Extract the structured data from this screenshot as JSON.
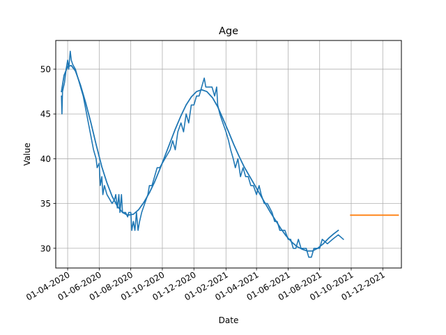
{
  "chart_data": {
    "type": "line",
    "title": "Age",
    "xlabel": "Date",
    "ylabel": "Value",
    "x_type": "date",
    "x_range": [
      "2020-03-09",
      "2022-01-06"
    ],
    "ylim": [
      27.8,
      53.2
    ],
    "grid": true,
    "x_ticks": [
      "2020-04-01",
      "2020-06-01",
      "2020-08-01",
      "2020-10-01",
      "2020-12-01",
      "2021-02-01",
      "2021-04-01",
      "2021-06-01",
      "2021-08-01",
      "2021-10-01",
      "2021-12-01"
    ],
    "x_tick_labels": [
      "01-04-2020",
      "01-06-2020",
      "01-08-2020",
      "01-10-2020",
      "01-12-2020",
      "01-02-2021",
      "01-04-2021",
      "01-06-2021",
      "01-08-2021",
      "01-10-2021",
      "01-12-2021"
    ],
    "y_ticks": [
      30,
      35,
      40,
      45,
      50
    ],
    "series": [
      {
        "color": "#1f77b4",
        "kind": "observed",
        "points": [
          [
            "2020-03-20",
            47
          ],
          [
            "2020-03-21",
            45
          ],
          [
            "2020-03-22",
            47.5
          ],
          [
            "2020-03-24",
            48
          ],
          [
            "2020-03-26",
            48.5
          ],
          [
            "2020-03-29",
            50
          ],
          [
            "2020-04-01",
            51
          ],
          [
            "2020-04-03",
            50
          ],
          [
            "2020-04-06",
            52
          ],
          [
            "2020-04-08",
            51
          ],
          [
            "2020-04-11",
            50.5
          ],
          [
            "2020-04-16",
            50
          ],
          [
            "2020-04-21",
            49
          ],
          [
            "2020-04-26",
            48
          ],
          [
            "2020-05-01",
            47
          ],
          [
            "2020-05-06",
            45.5
          ],
          [
            "2020-05-11",
            44
          ],
          [
            "2020-05-16",
            42.5
          ],
          [
            "2020-05-21",
            41
          ],
          [
            "2020-05-26",
            40
          ],
          [
            "2020-05-28",
            39
          ],
          [
            "2020-06-01",
            39.5
          ],
          [
            "2020-06-03",
            37
          ],
          [
            "2020-06-06",
            38
          ],
          [
            "2020-06-08",
            36
          ],
          [
            "2020-06-11",
            37
          ],
          [
            "2020-06-16",
            36
          ],
          [
            "2020-06-21",
            35.5
          ],
          [
            "2020-06-26",
            35
          ],
          [
            "2020-07-01",
            35.5
          ],
          [
            "2020-07-03",
            36
          ],
          [
            "2020-07-06",
            34.5
          ],
          [
            "2020-07-09",
            36
          ],
          [
            "2020-07-11",
            34
          ],
          [
            "2020-07-14",
            36
          ],
          [
            "2020-07-16",
            34
          ],
          [
            "2020-07-19",
            34
          ],
          [
            "2020-07-22",
            34
          ],
          [
            "2020-07-26",
            33.5
          ],
          [
            "2020-07-28",
            34
          ],
          [
            "2020-08-01",
            34
          ],
          [
            "2020-08-03",
            32
          ],
          [
            "2020-08-06",
            33
          ],
          [
            "2020-08-09",
            32
          ],
          [
            "2020-08-12",
            34
          ],
          [
            "2020-08-15",
            32
          ],
          [
            "2020-08-18",
            33
          ],
          [
            "2020-08-22",
            34
          ],
          [
            "2020-08-28",
            35
          ],
          [
            "2020-09-03",
            36
          ],
          [
            "2020-09-06",
            37
          ],
          [
            "2020-09-11",
            37
          ],
          [
            "2020-09-16",
            38
          ],
          [
            "2020-09-21",
            39
          ],
          [
            "2020-09-26",
            39
          ],
          [
            "2020-10-06",
            40
          ],
          [
            "2020-10-16",
            41
          ],
          [
            "2020-10-21",
            42
          ],
          [
            "2020-10-26",
            41
          ],
          [
            "2020-10-31",
            43
          ],
          [
            "2020-11-06",
            44
          ],
          [
            "2020-11-11",
            43
          ],
          [
            "2020-11-16",
            45
          ],
          [
            "2020-11-21",
            44
          ],
          [
            "2020-11-26",
            46
          ],
          [
            "2020-12-01",
            46
          ],
          [
            "2020-12-06",
            47
          ],
          [
            "2020-12-11",
            47
          ],
          [
            "2020-12-16",
            48
          ],
          [
            "2020-12-21",
            49
          ],
          [
            "2020-12-24",
            48
          ],
          [
            "2020-12-28",
            48
          ],
          [
            "2021-01-01",
            48
          ],
          [
            "2021-01-05",
            48
          ],
          [
            "2021-01-10",
            47
          ],
          [
            "2021-01-14",
            48
          ],
          [
            "2021-01-16",
            46
          ],
          [
            "2021-01-20",
            45
          ],
          [
            "2021-01-26",
            44
          ],
          [
            "2021-02-01",
            43
          ],
          [
            "2021-02-06",
            42
          ],
          [
            "2021-02-10",
            41
          ],
          [
            "2021-02-15",
            40
          ],
          [
            "2021-02-19",
            39
          ],
          [
            "2021-02-24",
            40
          ],
          [
            "2021-03-01",
            38
          ],
          [
            "2021-03-06",
            39
          ],
          [
            "2021-03-11",
            38
          ],
          [
            "2021-03-16",
            38
          ],
          [
            "2021-03-21",
            37
          ],
          [
            "2021-03-26",
            37
          ],
          [
            "2021-04-01",
            36
          ],
          [
            "2021-04-06",
            37
          ],
          [
            "2021-04-10",
            36
          ],
          [
            "2021-04-16",
            35
          ],
          [
            "2021-04-22",
            35
          ],
          [
            "2021-05-01",
            34
          ],
          [
            "2021-05-06",
            33
          ],
          [
            "2021-05-11",
            33
          ],
          [
            "2021-05-16",
            32
          ],
          [
            "2021-05-21",
            32
          ],
          [
            "2021-05-26",
            32
          ],
          [
            "2021-06-01",
            31
          ],
          [
            "2021-06-06",
            31
          ],
          [
            "2021-06-11",
            30
          ],
          [
            "2021-06-16",
            30
          ],
          [
            "2021-06-21",
            31
          ],
          [
            "2021-06-26",
            30
          ],
          [
            "2021-07-01",
            30
          ],
          [
            "2021-07-06",
            30
          ],
          [
            "2021-07-11",
            29
          ],
          [
            "2021-07-16",
            29
          ],
          [
            "2021-07-21",
            30
          ],
          [
            "2021-07-26",
            30
          ],
          [
            "2021-08-01",
            30
          ],
          [
            "2021-08-06",
            31
          ],
          [
            "2021-08-16",
            30.5
          ],
          [
            "2021-08-26",
            31
          ],
          [
            "2021-09-06",
            31.5
          ],
          [
            "2021-09-16",
            31
          ]
        ]
      },
      {
        "color": "#1f77b4",
        "kind": "trend",
        "points": [
          [
            "2020-03-20",
            47.5
          ],
          [
            "2020-03-25",
            49.3
          ],
          [
            "2020-04-01",
            50.3
          ],
          [
            "2020-04-08",
            50.4
          ],
          [
            "2020-04-16",
            49.8
          ],
          [
            "2020-04-26",
            48.2
          ],
          [
            "2020-05-06",
            46.2
          ],
          [
            "2020-05-16",
            44.0
          ],
          [
            "2020-05-26",
            41.6
          ],
          [
            "2020-06-06",
            39.1
          ],
          [
            "2020-06-16",
            37.3
          ],
          [
            "2020-06-26",
            35.8
          ],
          [
            "2020-07-06",
            34.7
          ],
          [
            "2020-07-16",
            34.0
          ],
          [
            "2020-07-26",
            33.7
          ],
          [
            "2020-08-06",
            33.8
          ],
          [
            "2020-08-16",
            34.3
          ],
          [
            "2020-08-26",
            35.1
          ],
          [
            "2020-09-06",
            36.2
          ],
          [
            "2020-09-16",
            37.4
          ],
          [
            "2020-09-26",
            38.8
          ],
          [
            "2020-10-06",
            40.3
          ],
          [
            "2020-10-16",
            41.8
          ],
          [
            "2020-10-26",
            43.3
          ],
          [
            "2020-11-06",
            44.8
          ],
          [
            "2020-11-16",
            46.0
          ],
          [
            "2020-11-26",
            46.9
          ],
          [
            "2020-12-06",
            47.5
          ],
          [
            "2020-12-16",
            47.7
          ],
          [
            "2020-12-26",
            47.5
          ],
          [
            "2021-01-06",
            46.8
          ],
          [
            "2021-01-16",
            45.8
          ],
          [
            "2021-01-26",
            44.5
          ],
          [
            "2021-02-06",
            43.0
          ],
          [
            "2021-02-16",
            41.6
          ],
          [
            "2021-02-26",
            40.3
          ],
          [
            "2021-03-08",
            39.1
          ],
          [
            "2021-03-18",
            38.1
          ],
          [
            "2021-03-28",
            37.1
          ],
          [
            "2021-04-08",
            36.0
          ],
          [
            "2021-04-18",
            35.0
          ],
          [
            "2021-04-28",
            34.0
          ],
          [
            "2021-05-08",
            33.1
          ],
          [
            "2021-05-18",
            32.2
          ],
          [
            "2021-05-28",
            31.4
          ],
          [
            "2021-06-08",
            30.7
          ],
          [
            "2021-06-18",
            30.2
          ],
          [
            "2021-06-28",
            29.9
          ],
          [
            "2021-07-08",
            29.7
          ],
          [
            "2021-07-18",
            29.7
          ],
          [
            "2021-07-28",
            30.0
          ],
          [
            "2021-08-08",
            30.5
          ],
          [
            "2021-08-18",
            31.1
          ],
          [
            "2021-08-28",
            31.6
          ],
          [
            "2021-09-06",
            32.0
          ]
        ]
      },
      {
        "color": "#ff7f0e",
        "kind": "forecast",
        "points": [
          [
            "2021-09-30",
            33.7
          ],
          [
            "2021-12-31",
            33.7
          ]
        ]
      }
    ]
  }
}
